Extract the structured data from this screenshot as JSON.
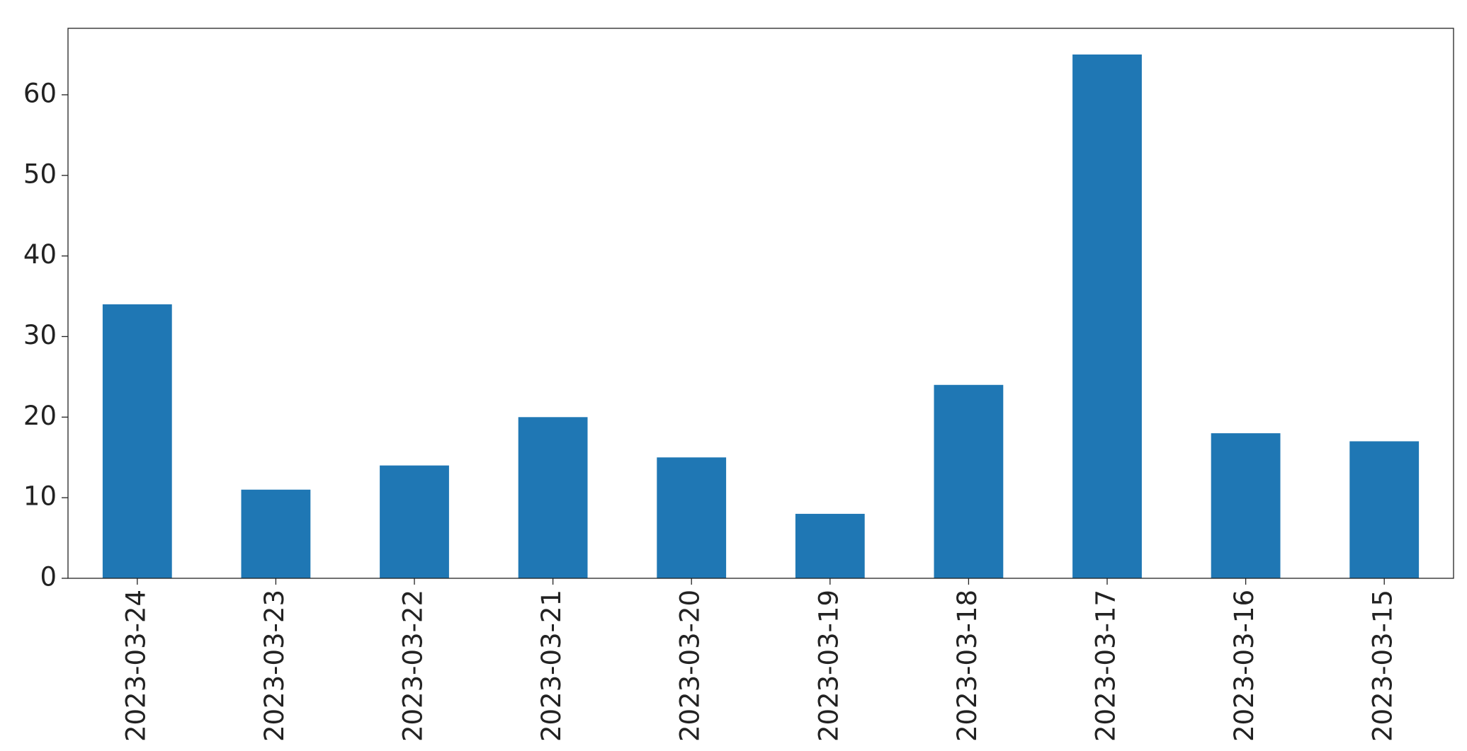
{
  "chart_data": {
    "type": "bar",
    "categories": [
      "2023-03-24",
      "2023-03-23",
      "2023-03-22",
      "2023-03-21",
      "2023-03-20",
      "2023-03-19",
      "2023-03-18",
      "2023-03-17",
      "2023-03-16",
      "2023-03-15"
    ],
    "values": [
      34,
      11,
      14,
      20,
      15,
      8,
      24,
      65,
      18,
      17
    ],
    "color": "#1f77b4",
    "ylim": [
      0,
      68.25
    ],
    "yticks": [
      0,
      10,
      20,
      30,
      40,
      50,
      60
    ],
    "grid": false
  }
}
